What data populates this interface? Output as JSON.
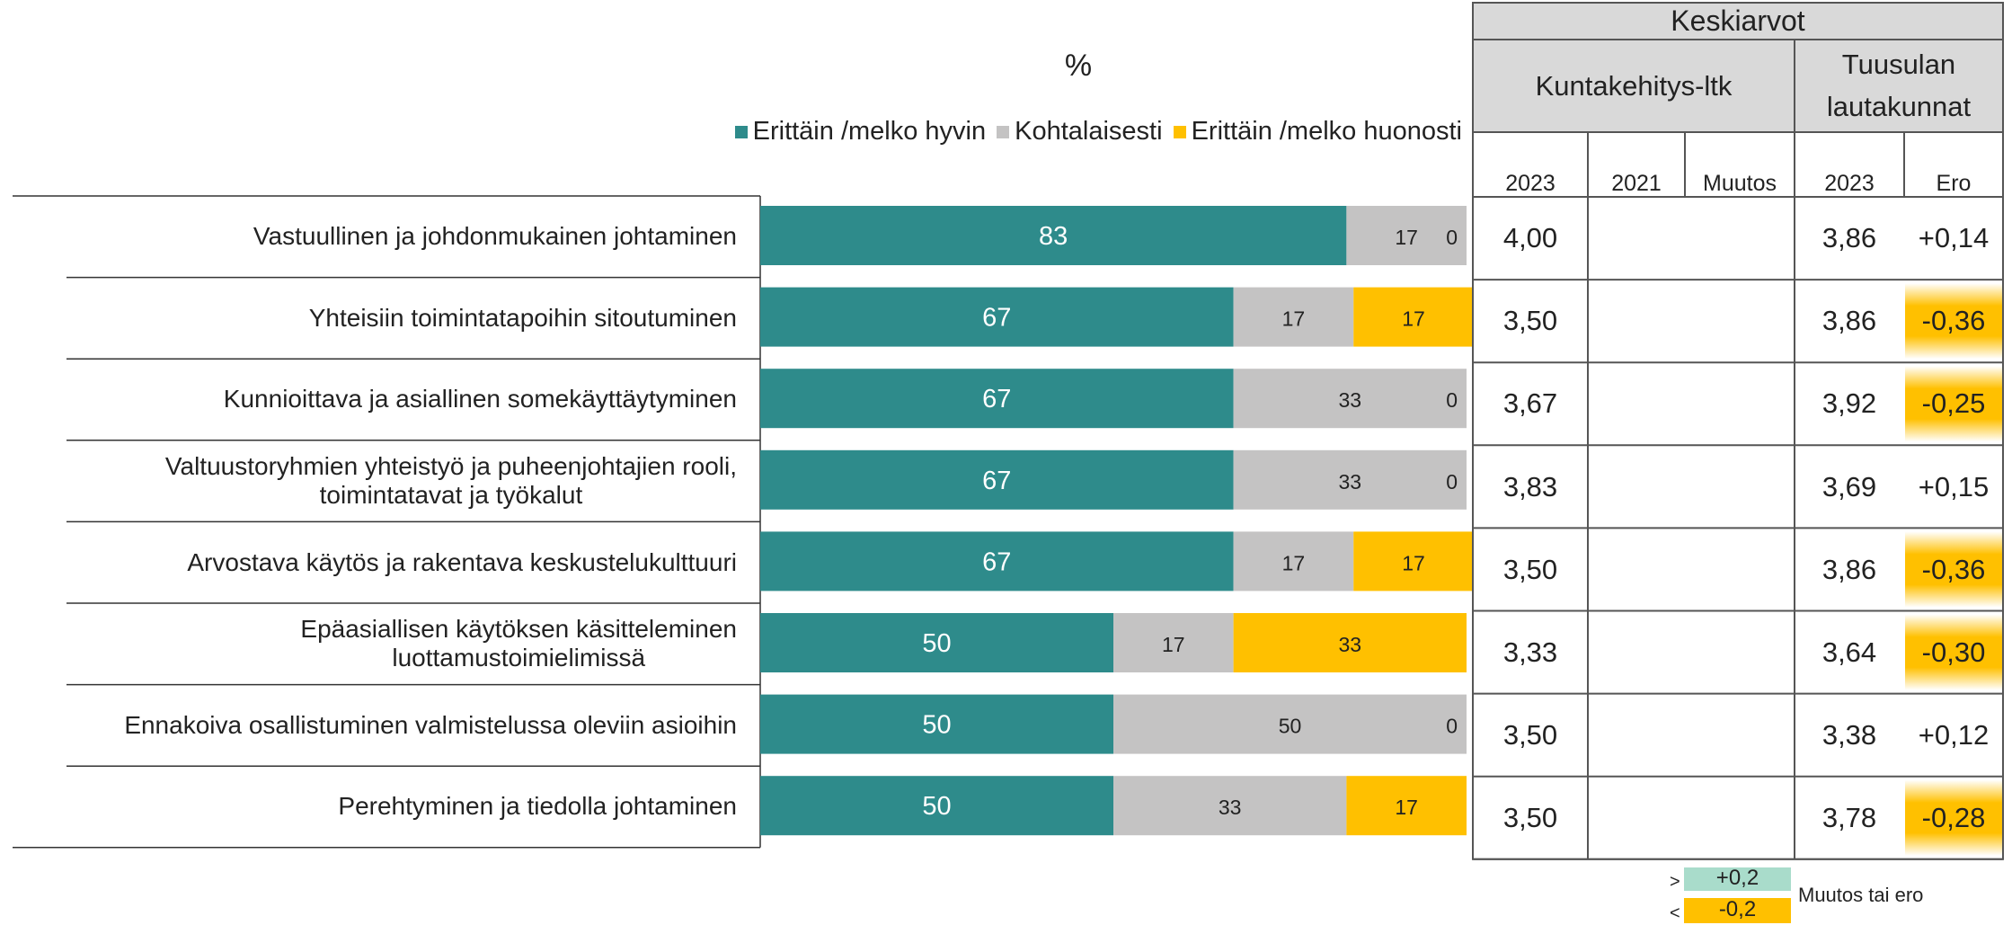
{
  "chart_data": {
    "type": "bar",
    "orientation": "horizontal",
    "stacked": true,
    "title": "%",
    "categories": [
      "Vastuullinen ja johdonmukainen johtaminen",
      "Yhteisiin toimintatapoihin sitoutuminen",
      "Kunnioittava ja asiallinen somekäyttäytyminen",
      "Valtuustoryhmien yhteistyö ja puheenjohtajien rooli,\ntoimintatavat ja työkalut",
      "Arvostava käytös ja rakentava keskustelukulttuuri",
      "Epäasiallisen käytöksen käsitteleminen\nluottamustoimielimissä",
      "Ennakoiva osallistuminen valmistelussa oleviin asioihin",
      "Perehtyminen ja tiedolla johtaminen"
    ],
    "series": [
      {
        "name": "Erittäin /melko hyvin",
        "color": "#2e8b8b",
        "label_color": "#ffffff",
        "values": [
          83,
          67,
          67,
          67,
          67,
          50,
          50,
          50
        ]
      },
      {
        "name": "Kohtalaisesti",
        "color": "#c4c3c3",
        "label_color": "#222222",
        "values": [
          17,
          17,
          33,
          33,
          17,
          17,
          50,
          33
        ]
      },
      {
        "name": "Erittäin /melko huonosti",
        "color": "#ffc000",
        "label_color": "#222222",
        "values": [
          0,
          17,
          0,
          0,
          17,
          33,
          0,
          17
        ]
      }
    ],
    "xlim": [
      0,
      100
    ],
    "legend": "top"
  },
  "table": {
    "title": "Keskiarvot",
    "groups": [
      "Kuntakehitys-ltk",
      "Tuusulan\nlautakunnat"
    ],
    "columns": [
      "2023",
      "2021",
      "Muutos",
      "2023",
      "Ero"
    ],
    "rows": [
      [
        "4,00",
        null,
        null,
        "3,86",
        "+0,14"
      ],
      [
        "3,50",
        null,
        null,
        "3,86",
        "-0,36"
      ],
      [
        "3,67",
        null,
        null,
        "3,92",
        "-0,25"
      ],
      [
        "3,83",
        null,
        null,
        "3,69",
        "+0,15"
      ],
      [
        "3,50",
        null,
        null,
        "3,86",
        "-0,36"
      ],
      [
        "3,33",
        null,
        null,
        "3,64",
        "-0,30"
      ],
      [
        "3,50",
        null,
        null,
        "3,38",
        "+0,12"
      ],
      [
        "3,50",
        null,
        null,
        "3,78",
        "-0,28"
      ]
    ],
    "key": {
      "high_sign": ">",
      "high": "+0,2",
      "high_color": "#a9dccb",
      "low_sign": "<",
      "low": "-0,2",
      "low_color": "#ffc000",
      "label": "Muutos tai ero"
    }
  }
}
